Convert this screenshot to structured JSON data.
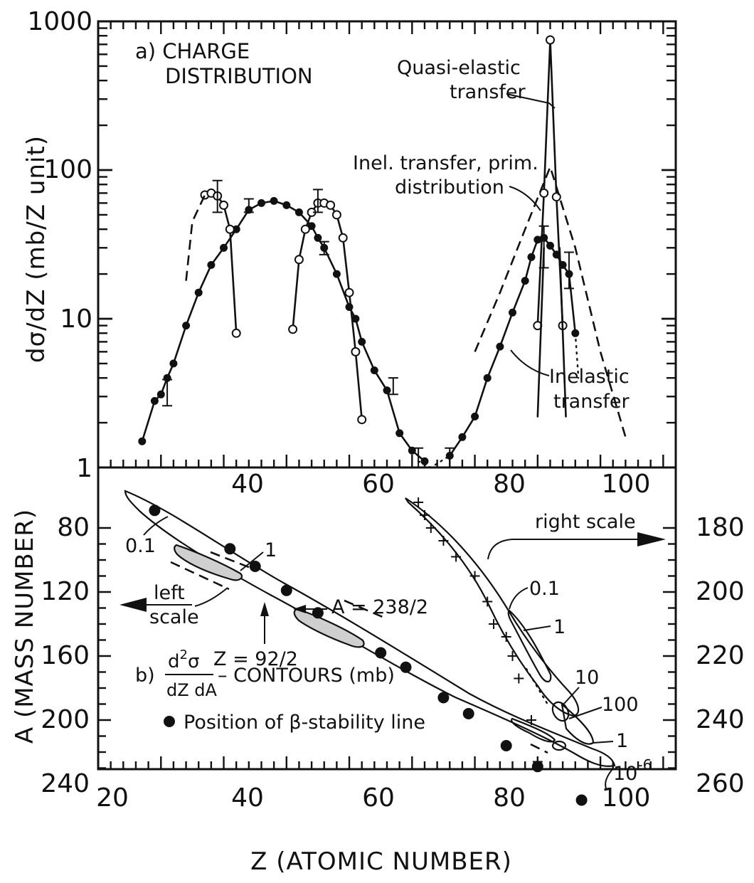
{
  "chart_data": [
    {
      "type": "line",
      "panel_label": "a) CHARGE",
      "panel_label_2": "DISTRIBUTION",
      "ylabel": "dσ/dZ (mb/Z unit)",
      "yscale": "log",
      "ylim": [
        1,
        1000
      ],
      "xlim": [
        20,
        112
      ],
      "y_tick_labels": [
        "1",
        "10",
        "100",
        "1000"
      ],
      "x_tick_labels": [
        "40",
        "60",
        "80",
        "100"
      ],
      "annotations": {
        "quasi_elastic": [
          "Quasi-elastic",
          "transfer"
        ],
        "inel_prim": [
          "Inel. transfer, prim.",
          "distribution"
        ],
        "inelastic": [
          "Inelastic",
          "transfer"
        ]
      },
      "series": [
        {
          "role": "inelastic-fission-solid",
          "x": [
            27,
            29,
            30,
            31,
            32,
            34,
            36,
            38,
            40,
            42,
            44,
            46,
            48,
            50,
            52,
            54,
            55,
            56,
            58,
            60,
            61,
            62,
            64,
            66,
            68,
            70,
            72
          ],
          "y": [
            1.5,
            2.8,
            3.1,
            4.0,
            5.0,
            9,
            15,
            23,
            30,
            40,
            54,
            60,
            62,
            58,
            52,
            42,
            35,
            30,
            20,
            12,
            10,
            7,
            4.5,
            3.3,
            1.7,
            1.3,
            1.1
          ]
        },
        {
          "role": "inelastic-transfer-solid",
          "x": [
            76,
            78,
            80,
            82,
            84,
            86,
            88,
            89,
            90,
            91,
            92,
            93,
            94,
            95,
            96
          ],
          "y": [
            1.2,
            1.6,
            2.2,
            4.0,
            6.5,
            11,
            18,
            26,
            34,
            35,
            31,
            27,
            23,
            20,
            8
          ]
        },
        {
          "role": "quasi-elastic-fission-open-left",
          "x": [
            37,
            38,
            39,
            40,
            41,
            42
          ],
          "y": [
            68,
            70,
            67,
            58,
            40,
            8
          ]
        },
        {
          "role": "quasi-elastic-fission-open-right",
          "x": [
            51,
            52,
            53,
            54,
            55,
            56,
            57,
            58,
            59,
            60,
            61,
            62
          ],
          "y": [
            8.5,
            25,
            40,
            52,
            60,
            60,
            58,
            50,
            35,
            15,
            6,
            2.1
          ]
        },
        {
          "role": "quasi-elastic-transfer-peak",
          "x": [
            90,
            91,
            92,
            93,
            94
          ],
          "y": [
            9,
            70,
            750,
            66,
            9
          ]
        },
        {
          "role": "inel-transfer-primary-dashed",
          "x": [
            80,
            84,
            88,
            92,
            96,
            100,
            104
          ],
          "y": [
            6,
            15,
            40,
            105,
            30,
            6,
            1.6
          ]
        }
      ]
    },
    {
      "type": "scatter",
      "panel_label_prefix": "b)",
      "contour_label_num": "d",
      "contour_label_den": "dZ dA",
      "contour_label_sup": "2",
      "contour_label_sigma": "σ",
      "contour_label_suffix": "– CONTOURS (mb)",
      "legend_marker_text": "Position of β-stability line",
      "xlabel": "Z (ATOMIC NUMBER)",
      "ylabel": "A (MASS NUMBER)",
      "xlim": [
        20,
        112
      ],
      "ylim_left": [
        60,
        260
      ],
      "ylim_right": [
        170,
        265
      ],
      "x_tick_labels": [
        "20",
        "40",
        "60",
        "80",
        "100"
      ],
      "y_tick_labels_left": [
        "80",
        "120",
        "160",
        "200",
        "240"
      ],
      "y_tick_labels_right": [
        "180",
        "200",
        "220",
        "240",
        "260"
      ],
      "annotations": {
        "left_scale": [
          "left",
          "scale"
        ],
        "right_scale": "right scale",
        "a_half": "A = 238/2",
        "z_half": "Z = 92/2",
        "c01_left": "0.1",
        "c1_left": "1",
        "c01_right": "0.1",
        "c1_right": "1",
        "c10": "10",
        "c100": "100",
        "c1_right2": "1",
        "c1e6_base": "10",
        "c1e6_exp": "-6"
      },
      "stability_points": {
        "z": [
          29,
          41,
          45,
          50,
          55,
          65,
          69,
          75,
          79,
          85,
          90,
          97
        ],
        "a": [
          69,
          93,
          104,
          119,
          133,
          158,
          167,
          186,
          196,
          216,
          229,
          250
        ]
      },
      "right_scale_crosses": {
        "z": [
          71,
          72,
          73,
          75,
          77,
          80,
          82,
          83,
          85,
          86,
          87,
          89,
          90
        ],
        "a": [
          172,
          176,
          180,
          184,
          189,
          195,
          203,
          210,
          214,
          220,
          227,
          240,
          253
        ]
      }
    }
  ]
}
